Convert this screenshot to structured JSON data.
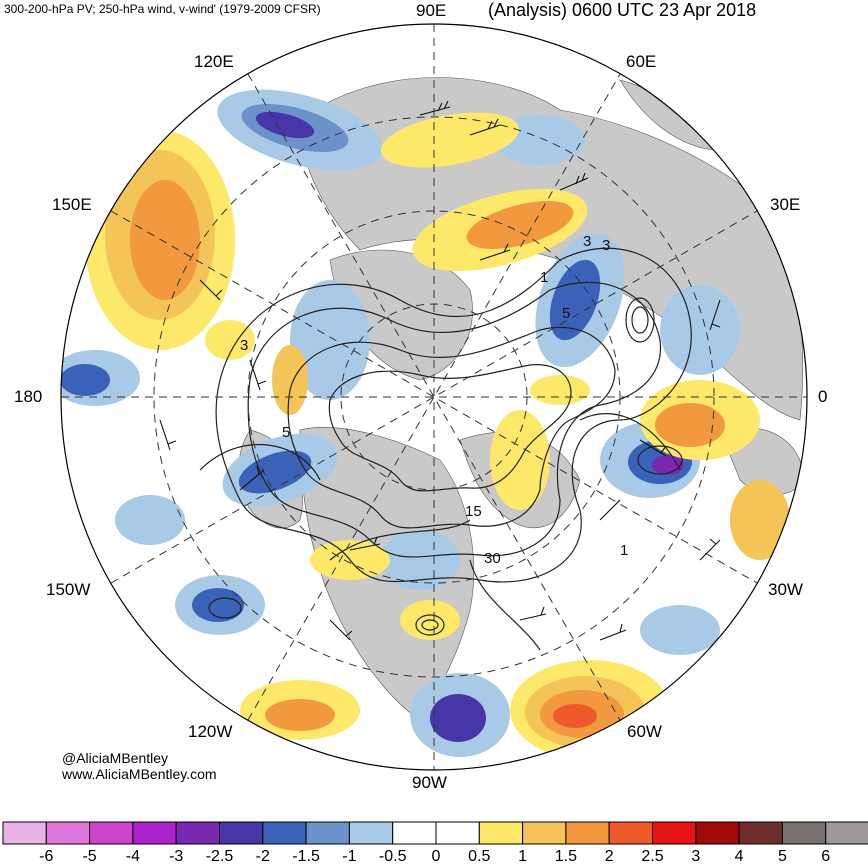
{
  "header": {
    "left_title": "300-200-hPa PV; 250-hPa wind, v-wind' (1979-2009 CFSR)",
    "right_title": "(Analysis) 0600 UTC 23 Apr 2018"
  },
  "longitude_labels": {
    "e90": "90E",
    "e60": "60E",
    "e120": "120E",
    "e150": "150E",
    "e30": "30E",
    "w180": "180",
    "zero": "0",
    "w150": "150W",
    "w30": "30W",
    "w120": "120W",
    "w60": "60W",
    "w90": "90W"
  },
  "credits": {
    "handle": "@AliciaMBentley",
    "website": "www.AliciaMBentley.com"
  },
  "contour_labels": [
    "3",
    "3",
    "5",
    "5",
    "1",
    "1",
    "3",
    "15",
    "30"
  ],
  "colorbar": {
    "ticks": [
      "-6",
      "-5",
      "-4",
      "-3",
      "-2.5",
      "-2",
      "-1.5",
      "-1",
      "-0.5",
      "0",
      "0.5",
      "1",
      "1.5",
      "2",
      "2.5",
      "3",
      "4",
      "5",
      "6"
    ],
    "colors": [
      "#e8b4e8",
      "#e078e0",
      "#cc44cc",
      "#aa22cc",
      "#7a28b0",
      "#4636a8",
      "#3a62b8",
      "#6c92cc",
      "#a8cae6",
      "#ffffff",
      "#ffffff",
      "#fde86a",
      "#f5c458",
      "#f2983e",
      "#ee5a2c",
      "#e81414",
      "#a00a0a",
      "#6e2e2e",
      "#7a7070",
      "#a09898"
    ]
  }
}
